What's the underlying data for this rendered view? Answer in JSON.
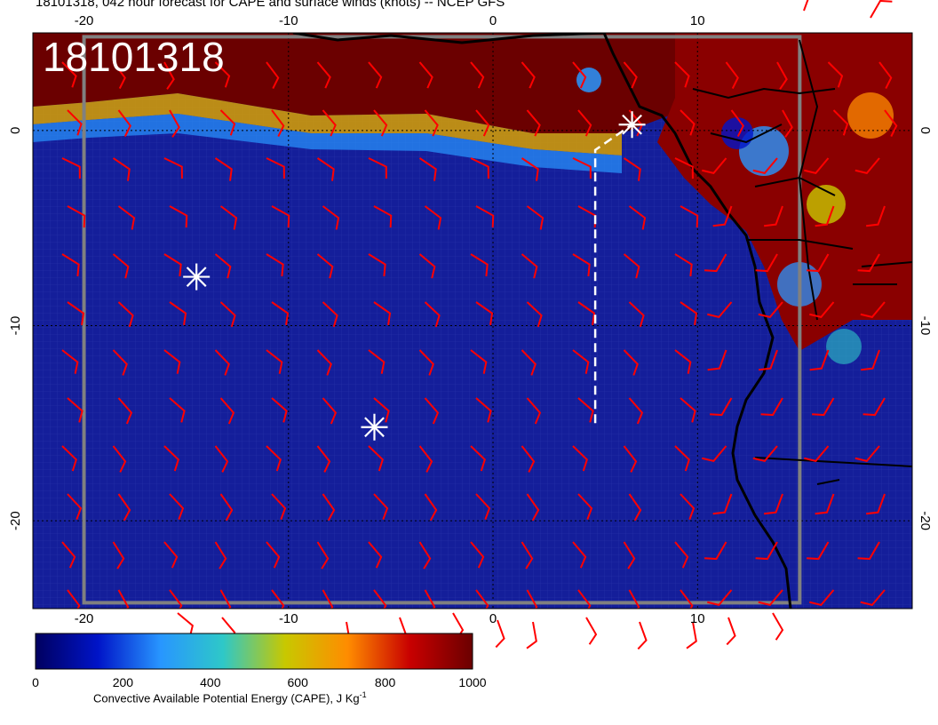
{
  "title": "18101318, 042 hour forecast for CAPE and surface winds (knots) -- NCEP GFS",
  "stamp": "18101318",
  "colors": {
    "ocean_low": "#141e9a",
    "land_high": "#6b0000",
    "barb": "#ff0000",
    "coast": "#000000",
    "marker": "#ffffff",
    "grid_frame": "#808080"
  },
  "map": {
    "lon_range": [
      -22.5,
      20.5
    ],
    "lat_range": [
      -24.5,
      5
    ],
    "lon_ticks": [
      "-20",
      "-10",
      "0",
      "10"
    ],
    "lat_ticks": [
      "0",
      "-10",
      "-20"
    ],
    "storm_markers": [
      {
        "lon": 6.8,
        "lat": 0.3
      },
      {
        "lon": -14.5,
        "lat": -7.5
      },
      {
        "lon": -5.8,
        "lat": -15.2
      }
    ],
    "track": [
      [
        5,
        -15
      ],
      [
        5,
        -1
      ],
      [
        6.8,
        0.3
      ]
    ],
    "fields": {
      "cape_variable": "Convective Available Potential Energy (CAPE)",
      "wind_variable": "surface winds (knots)",
      "model": "NCEP GFS",
      "forecast_hour": "042",
      "init": "18101318"
    }
  },
  "colorbar": {
    "min": 0,
    "max": 1000,
    "tick_labels": [
      "0",
      "200",
      "400",
      "600",
      "800",
      "1000"
    ],
    "title": "Convective Available Potential Energy (CAPE), J Kg",
    "title_sup": "-1",
    "stops": [
      "#000060",
      "#0014c8",
      "#2896ff",
      "#2ec8c8",
      "#c8c800",
      "#ff8c00",
      "#c80000",
      "#6b0000"
    ]
  }
}
